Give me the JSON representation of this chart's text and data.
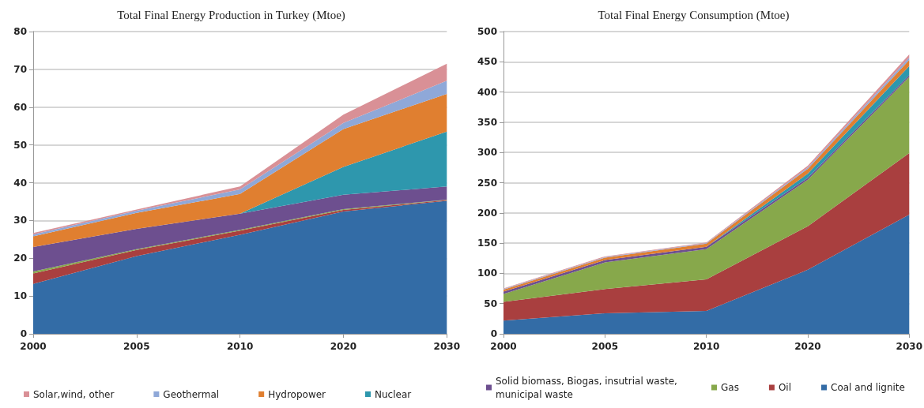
{
  "chart_data": [
    {
      "type": "area",
      "title": "Total Final Energy Production in Turkey (Mtoe)",
      "categories": [
        "2000",
        "2005",
        "2010",
        "2020",
        "2030"
      ],
      "stacked": true,
      "ylim": [
        0,
        80
      ],
      "yticks": [
        0,
        10,
        20,
        30,
        40,
        50,
        60,
        70,
        80
      ],
      "grid": "y",
      "legend": "bottom",
      "marker": "none",
      "series": [
        {
          "color": "#336ca6",
          "values": [
            13.2,
            20.6,
            26.2,
            32.4,
            35.2
          ]
        },
        {
          "color": "#a93f3f",
          "values": [
            2.8,
            1.6,
            1.1,
            0.4,
            0.2
          ]
        },
        {
          "color": "#87a84b",
          "values": [
            0.5,
            0.2,
            0.2,
            0.2,
            0.1
          ]
        },
        {
          "color": "#6d4f8f",
          "values": [
            6.5,
            5.4,
            4.3,
            3.8,
            3.5
          ]
        },
        {
          "name": "Nuclear",
          "color": "#2e97ad",
          "values": [
            0,
            0,
            0,
            7.4,
            14.5
          ]
        },
        {
          "name": "Hydropower",
          "color": "#e07f30",
          "values": [
            2.8,
            4.2,
            5.2,
            10,
            10
          ]
        },
        {
          "name": "Geothermal",
          "color": "#8fa8d8",
          "values": [
            0.5,
            0.6,
            1.2,
            1.6,
            3.5
          ]
        },
        {
          "name": "Solar,wind, other",
          "color": "#d99096",
          "values": [
            0.4,
            0.3,
            0.8,
            2.2,
            4.5
          ]
        }
      ]
    },
    {
      "type": "area",
      "title": "Total Final Energy Consumption (Mtoe)",
      "categories": [
        "2000",
        "2005",
        "2010",
        "2020",
        "2030"
      ],
      "stacked": true,
      "ylim": [
        0,
        500
      ],
      "yticks": [
        0,
        50,
        100,
        150,
        200,
        250,
        300,
        350,
        400,
        450,
        500
      ],
      "grid": "y",
      "legend": "bottom",
      "marker": "none",
      "series": [
        {
          "name": "Coal and lignite",
          "color": "#336ca6",
          "values": [
            22,
            34,
            38,
            106,
            197
          ]
        },
        {
          "name": "Oil",
          "color": "#a93f3f",
          "values": [
            31,
            40,
            52,
            72,
            102
          ]
        },
        {
          "name": "Gas",
          "color": "#87a84b",
          "values": [
            13,
            44,
            50,
            77,
            126
          ]
        },
        {
          "name": "Solid biomass, Biogas, insutrial waste, municipal waste",
          "color": "#6d4f8f",
          "values": [
            4,
            4,
            4,
            3,
            3
          ]
        },
        {
          "color": "#2e97ad",
          "values": [
            0,
            0,
            0,
            7,
            15
          ]
        },
        {
          "color": "#e07f30",
          "values": [
            3,
            4,
            5,
            8,
            10
          ]
        },
        {
          "color": "#8fa8d8",
          "values": [
            1,
            1,
            1,
            2,
            4
          ]
        },
        {
          "color": "#d99096",
          "values": [
            1,
            1,
            1,
            3,
            5
          ]
        }
      ]
    }
  ]
}
